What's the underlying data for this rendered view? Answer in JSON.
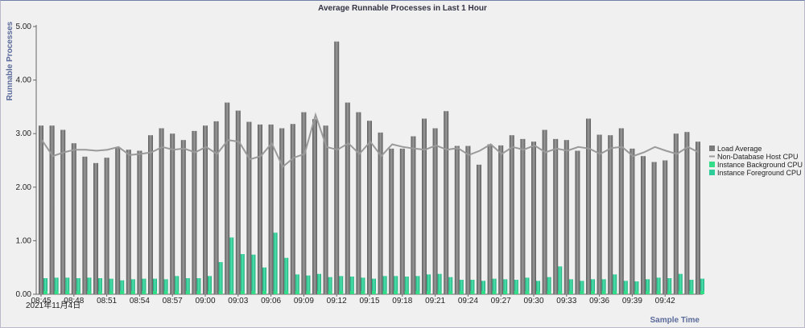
{
  "chart_data": {
    "type": "bar",
    "title": "Average Runnable Processes in Last 1 Hour",
    "xlabel": "Sample Time",
    "ylabel": "Runnable Processes",
    "ylim": [
      0,
      5
    ],
    "yticks": [
      "0.00",
      "1.00",
      "2.00",
      "3.00",
      "4.00",
      "5.00"
    ],
    "xticks": [
      "08:45",
      "08:48",
      "08:51",
      "08:54",
      "08:57",
      "09:00",
      "09:03",
      "09:06",
      "09:09",
      "09:12",
      "09:15",
      "09:18",
      "09:21",
      "09:24",
      "09:27",
      "09:30",
      "09:33",
      "09:36",
      "09:39",
      "09:42"
    ],
    "date_label": "2021年11月4日",
    "legend_placement": "right",
    "grid": false,
    "series": [
      {
        "name": "Load Average",
        "kind": "bar",
        "color": "#7a7a7a",
        "values": [
          3.15,
          3.15,
          3.07,
          2.82,
          2.57,
          2.45,
          2.55,
          2.75,
          2.7,
          2.68,
          2.97,
          3.1,
          3.0,
          2.88,
          3.05,
          3.15,
          3.23,
          3.58,
          3.43,
          3.22,
          3.17,
          3.17,
          3.1,
          3.18,
          3.4,
          3.27,
          3.15,
          4.72,
          3.58,
          3.4,
          3.24,
          3.02,
          2.72,
          2.72,
          2.95,
          3.28,
          3.1,
          3.42,
          2.77,
          2.77,
          2.42,
          2.8,
          2.78,
          2.97,
          2.9,
          2.85,
          3.07,
          2.9,
          2.88,
          2.68,
          3.28,
          2.98,
          2.97,
          3.1,
          2.72,
          2.58,
          2.47,
          2.5,
          3.0,
          3.03,
          2.85
        ]
      },
      {
        "name": "Non-Database Host CPU",
        "kind": "line",
        "color": "#9a9a9a",
        "values": [
          2.88,
          2.58,
          2.65,
          2.7,
          2.7,
          2.68,
          2.7,
          2.75,
          2.6,
          2.62,
          2.65,
          2.75,
          2.7,
          2.72,
          2.65,
          2.75,
          2.62,
          2.88,
          2.85,
          2.52,
          2.58,
          2.82,
          2.38,
          2.55,
          2.62,
          3.35,
          2.75,
          2.7,
          2.82,
          2.62,
          2.85,
          2.58,
          2.8,
          2.75,
          2.72,
          2.7,
          2.78,
          2.7,
          2.73,
          2.6,
          2.68,
          2.8,
          2.62,
          2.75,
          2.7,
          2.78,
          2.65,
          2.72,
          2.68,
          2.75,
          2.72,
          2.62,
          2.73,
          2.75,
          2.58,
          2.65,
          2.75,
          2.68,
          2.62,
          2.75,
          2.65
        ]
      },
      {
        "name": "Instance Background CPU",
        "kind": "bar",
        "color": "#33dd88",
        "values": [
          0.06,
          0.06,
          0.06,
          0.06,
          0.06,
          0.06,
          0.06,
          0.06,
          0.06,
          0.06,
          0.06,
          0.06,
          0.06,
          0.06,
          0.06,
          0.06,
          0.06,
          0.06,
          0.06,
          0.06,
          0.06,
          0.06,
          0.06,
          0.06,
          0.06,
          0.06,
          0.06,
          0.06,
          0.06,
          0.06,
          0.06,
          0.06,
          0.06,
          0.06,
          0.06,
          0.06,
          0.06,
          0.06,
          0.06,
          0.06,
          0.06,
          0.06,
          0.06,
          0.06,
          0.06,
          0.06,
          0.06,
          0.06,
          0.06,
          0.06,
          0.06,
          0.06,
          0.06,
          0.06,
          0.06,
          0.06,
          0.06,
          0.06,
          0.06,
          0.06,
          0.06
        ]
      },
      {
        "name": "Instance Foreground CPU",
        "kind": "bar",
        "color": "#2ecc99",
        "values": [
          0.3,
          0.31,
          0.31,
          0.3,
          0.31,
          0.3,
          0.29,
          0.26,
          0.28,
          0.29,
          0.29,
          0.28,
          0.34,
          0.3,
          0.3,
          0.34,
          0.6,
          1.06,
          0.75,
          0.74,
          0.5,
          1.15,
          0.68,
          0.37,
          0.35,
          0.38,
          0.32,
          0.34,
          0.33,
          0.31,
          0.29,
          0.34,
          0.34,
          0.33,
          0.34,
          0.37,
          0.38,
          0.32,
          0.27,
          0.27,
          0.25,
          0.29,
          0.28,
          0.27,
          0.31,
          0.25,
          0.32,
          0.52,
          0.28,
          0.25,
          0.28,
          0.28,
          0.37,
          0.25,
          0.24,
          0.28,
          0.31,
          0.3,
          0.38,
          0.27,
          0.29
        ]
      }
    ]
  }
}
